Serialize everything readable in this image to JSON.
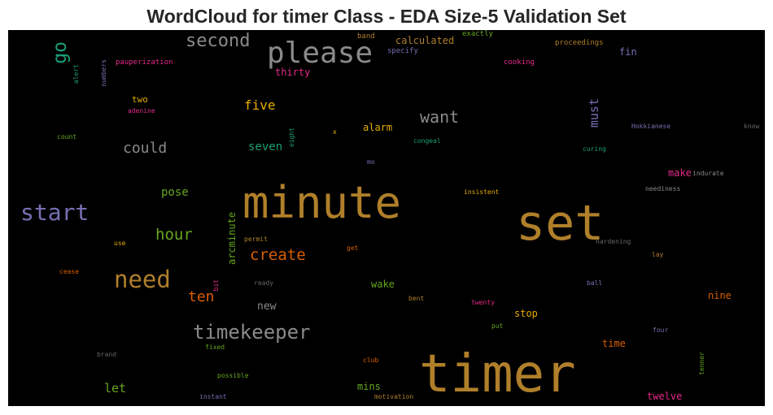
{
  "chart_data": {
    "type": "wordcloud",
    "title": "WordCloud for timer Class - EDA Size-5 Validation Set",
    "background": "#000000",
    "words": [
      {
        "text": "timer",
        "color": "#b07f2a"
      },
      {
        "text": "set",
        "color": "#b07f2a"
      },
      {
        "text": "minute",
        "color": "#b07f2a"
      },
      {
        "text": "please",
        "color": "#8a8a8a"
      },
      {
        "text": "start",
        "color": "#7570b3"
      },
      {
        "text": "need",
        "color": "#b07f2a"
      },
      {
        "text": "timekeeper",
        "color": "#8a8a8a"
      },
      {
        "text": "second",
        "color": "#8a8a8a"
      },
      {
        "text": "go",
        "color": "#1b9e77"
      },
      {
        "text": "want",
        "color": "#8a8a8a"
      },
      {
        "text": "could",
        "color": "#8a8a8a"
      },
      {
        "text": "create",
        "color": "#d95f02"
      },
      {
        "text": "hour",
        "color": "#66a61e"
      },
      {
        "text": "ten",
        "color": "#d95f02"
      },
      {
        "text": "five",
        "color": "#e6ab02"
      },
      {
        "text": "must",
        "color": "#7570b3"
      },
      {
        "text": "seven",
        "color": "#1b9e77"
      },
      {
        "text": "let",
        "color": "#66a61e"
      },
      {
        "text": "pose",
        "color": "#66a61e"
      },
      {
        "text": "new",
        "color": "#8a8a8a"
      },
      {
        "text": "alarm",
        "color": "#e6ab02"
      },
      {
        "text": "arcminute",
        "color": "#66a61e"
      },
      {
        "text": "calculated",
        "color": "#b07f2a"
      },
      {
        "text": "thirty",
        "color": "#e7298a"
      },
      {
        "text": "fin",
        "color": "#7570b3"
      },
      {
        "text": "nine",
        "color": "#d95f02"
      },
      {
        "text": "wake",
        "color": "#66a61e"
      },
      {
        "text": "stop",
        "color": "#e6ab02"
      },
      {
        "text": "time",
        "color": "#d95f02"
      },
      {
        "text": "twelve",
        "color": "#e7298a"
      },
      {
        "text": "mins",
        "color": "#66a61e"
      },
      {
        "text": "make",
        "color": "#e7298a"
      },
      {
        "text": "two",
        "color": "#e6ab02"
      },
      {
        "text": "band",
        "color": "#b07f2a"
      },
      {
        "text": "exactly",
        "color": "#66a61e"
      },
      {
        "text": "proceedings",
        "color": "#b07f2a"
      },
      {
        "text": "specify",
        "color": "#7570b3"
      },
      {
        "text": "pauperization",
        "color": "#e7298a"
      },
      {
        "text": "cooking",
        "color": "#e7298a"
      },
      {
        "text": "numbers",
        "color": "#7570b3"
      },
      {
        "text": "alert",
        "color": "#1b9e77"
      },
      {
        "text": "adenine",
        "color": "#e7298a"
      },
      {
        "text": "count",
        "color": "#66a61e"
      },
      {
        "text": "eight",
        "color": "#1b9e77"
      },
      {
        "text": "x",
        "color": "#e6ab02"
      },
      {
        "text": "congeal",
        "color": "#1b9e77"
      },
      {
        "text": "Hokkianese",
        "color": "#7570b3"
      },
      {
        "text": "know",
        "color": "#666666"
      },
      {
        "text": "curing",
        "color": "#1b9e77"
      },
      {
        "text": "mo",
        "color": "#7570b3"
      },
      {
        "text": "indurate",
        "color": "#8a8a8a"
      },
      {
        "text": "insistent",
        "color": "#e6ab02"
      },
      {
        "text": "neediness",
        "color": "#8a8a8a"
      },
      {
        "text": "use",
        "color": "#e6ab02"
      },
      {
        "text": "permit",
        "color": "#b07f2a"
      },
      {
        "text": "get",
        "color": "#d95f02"
      },
      {
        "text": "hardening",
        "color": "#666666"
      },
      {
        "text": "lay",
        "color": "#b07f2a"
      },
      {
        "text": "cease",
        "color": "#d95f02"
      },
      {
        "text": "bit",
        "color": "#e7298a"
      },
      {
        "text": "ready",
        "color": "#666666"
      },
      {
        "text": "ball",
        "color": "#7570b3"
      },
      {
        "text": "bent",
        "color": "#b07f2a"
      },
      {
        "text": "twenty",
        "color": "#e7298a"
      },
      {
        "text": "put",
        "color": "#66a61e"
      },
      {
        "text": "four",
        "color": "#7570b3"
      },
      {
        "text": "brand",
        "color": "#666666"
      },
      {
        "text": "fixed",
        "color": "#66a61e"
      },
      {
        "text": "club",
        "color": "#d95f02"
      },
      {
        "text": "tenner",
        "color": "#66a61e"
      },
      {
        "text": "possible",
        "color": "#66a61e"
      },
      {
        "text": "instant",
        "color": "#7570b3"
      },
      {
        "text": "motivation",
        "color": "#b07f2a"
      }
    ]
  }
}
